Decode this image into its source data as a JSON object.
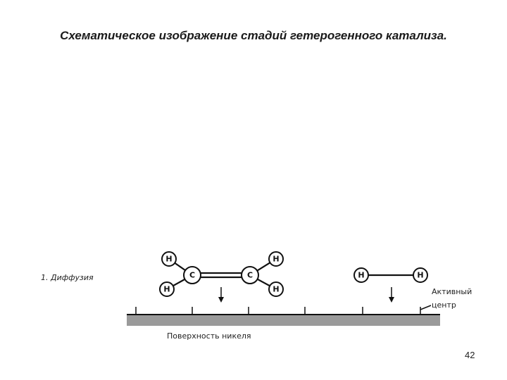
{
  "title": "Схематическое изображение стадий гетерогенного  катализа.",
  "step": "1. Диффузия",
  "molecules": [
    {
      "atoms": [
        "H",
        "C",
        "C",
        "H",
        "H",
        "H"
      ]
    },
    {
      "atoms": [
        "H",
        "H"
      ]
    }
  ],
  "active_site": [
    "Активный",
    "центр"
  ],
  "surface": "Поверхность никеля",
  "page_number": "42"
}
